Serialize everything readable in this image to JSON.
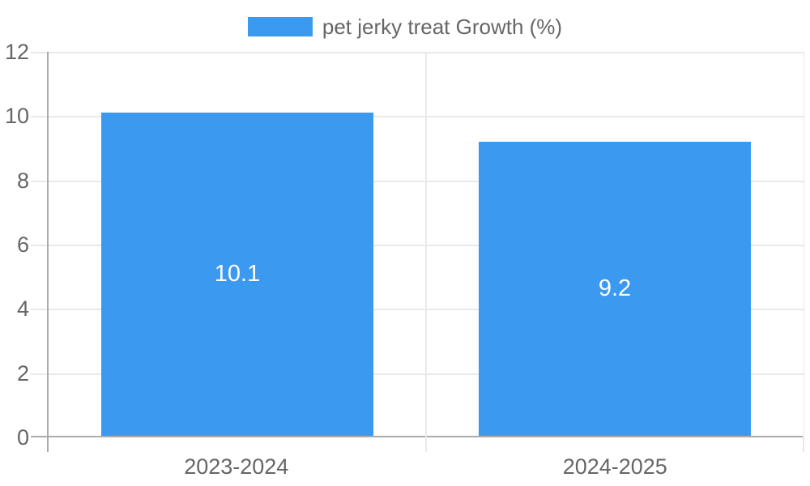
{
  "chart_data": {
    "type": "bar",
    "title": "",
    "legend": {
      "label": "pet jerky treat Growth (%)",
      "position": "top"
    },
    "categories": [
      "2023-2024",
      "2024-2025"
    ],
    "values": [
      10.1,
      9.2
    ],
    "data_labels": [
      "10.1",
      "9.2"
    ],
    "xlabel": "",
    "ylabel": "",
    "ylim": [
      0,
      12
    ],
    "yticks": [
      0,
      2,
      4,
      6,
      8,
      10,
      12
    ],
    "grid": true,
    "colors": {
      "bar": "#3c99f0",
      "data_label": "#ffffff",
      "tick_text": "#666666",
      "axis_line": "#ababab",
      "gridline": "#e9e9e9",
      "background": "#ffffff"
    }
  }
}
